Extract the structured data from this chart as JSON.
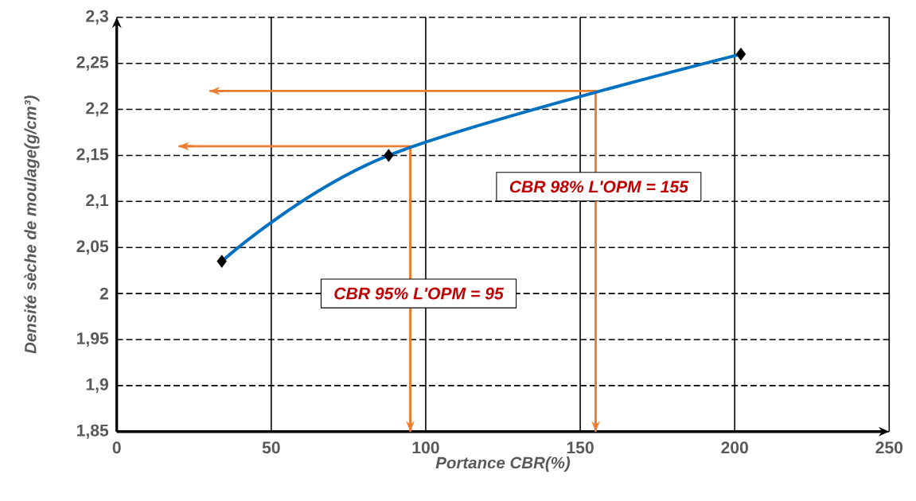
{
  "chart_data": {
    "type": "line",
    "xlabel": "Portance CBR(%)",
    "ylabel": "Densité sèche de moulage(g/cm³)",
    "xlim": [
      0,
      250
    ],
    "ylim": [
      1.85,
      2.3
    ],
    "xticks": [
      0,
      50,
      100,
      150,
      200,
      250
    ],
    "yticks": [
      {
        "value": 1.85,
        "label": "1,85"
      },
      {
        "value": 1.9,
        "label": "1,9"
      },
      {
        "value": 1.95,
        "label": "1,95"
      },
      {
        "value": 2,
        "label": "2"
      },
      {
        "value": 2.05,
        "label": "2,05"
      },
      {
        "value": 2.1,
        "label": "2,1"
      },
      {
        "value": 2.15,
        "label": "2,15"
      },
      {
        "value": 2.2,
        "label": "2,2"
      },
      {
        "value": 2.25,
        "label": "2,25"
      },
      {
        "value": 2.3,
        "label": "2,3"
      }
    ],
    "grid": true,
    "series": [
      {
        "color": "#ed7d31",
        "x": [
          20,
          95,
          95
        ],
        "values": [
          2.16,
          2.16,
          1.85
        ],
        "marker": "none",
        "line_style": "solid"
      },
      {
        "color": "#ed7d31",
        "x": [
          30,
          155,
          155
        ],
        "values": [
          2.22,
          2.22,
          1.85
        ],
        "marker": "none",
        "line_style": "solid"
      },
      {
        "color": "#0070c0",
        "x": [
          34,
          88,
          202
        ],
        "values": [
          2.035,
          2.15,
          2.26
        ],
        "marker": "diamond",
        "line_style": "solid"
      }
    ],
    "annotations": [
      "CBR 98% L'OPM = 155",
      "CBR 95% L'OPM = 95"
    ]
  }
}
